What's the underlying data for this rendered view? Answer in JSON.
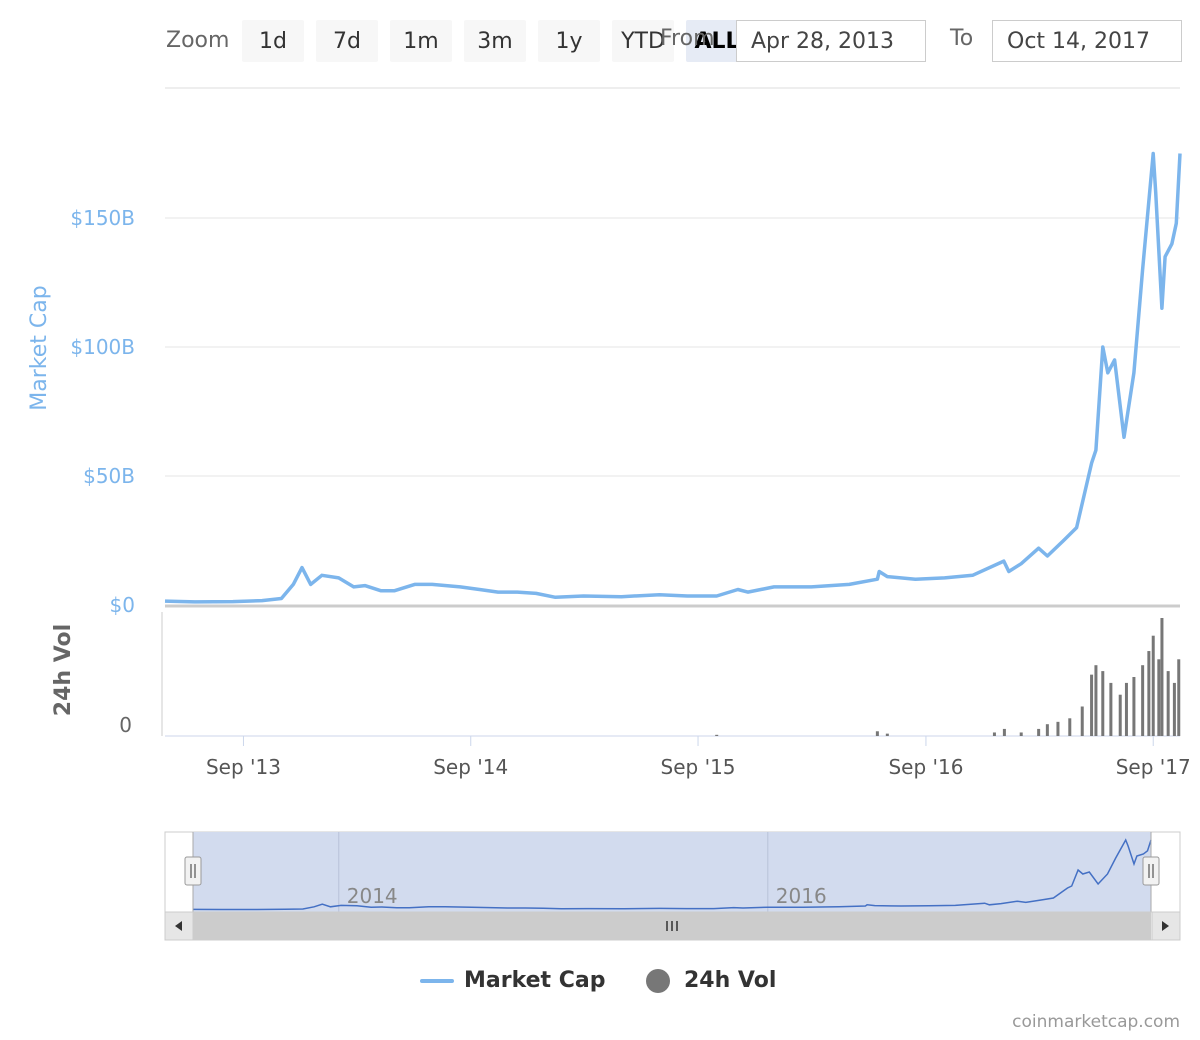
{
  "toolbar": {
    "zoom_label": "Zoom",
    "buttons": [
      "1d",
      "7d",
      "1m",
      "3m",
      "1y",
      "YTD",
      "ALL"
    ],
    "active": "ALL",
    "from_label": "From",
    "from_value": "Apr 28, 2013",
    "to_label": "To",
    "to_value": "Oct 14, 2017"
  },
  "colors": {
    "market_cap": "#7cb5ec",
    "volume": "#777777",
    "navigator_line": "#4470c4",
    "navigator_mask": "#d2dbee"
  },
  "credits": "coinmarketcap.com",
  "chart_data": {
    "type": "line",
    "title": "",
    "x_start": "2013-04-28",
    "x_end": "2017-10-14",
    "x_tick_labels": [
      "Sep '13",
      "Sep '14",
      "Sep '15",
      "Sep '16",
      "Sep '17"
    ],
    "x_ticks": [
      "2013-09-01",
      "2014-09-01",
      "2015-09-01",
      "2016-09-01",
      "2017-09-01"
    ],
    "navigator_labels": [
      "2014",
      "2016"
    ],
    "navigator_ticks": [
      "2014-01-01",
      "2016-01-01"
    ],
    "legend": [
      "Market Cap",
      "24h Vol"
    ],
    "market_cap_axis": {
      "label": "Market Cap",
      "ylim": [
        0,
        150
      ],
      "ticks": [
        0,
        50,
        100,
        150
      ],
      "tick_labels": [
        "$0",
        "$50B",
        "$100B",
        "$150B"
      ]
    },
    "volume_axis": {
      "label": "24h Vol",
      "ticks": [
        0
      ],
      "tick_labels": [
        "0"
      ]
    },
    "series": [
      {
        "name": "Market Cap",
        "unit": "billion USD",
        "points": [
          [
            "2013-04-28",
            1.5
          ],
          [
            "2013-06-15",
            1.2
          ],
          [
            "2013-08-15",
            1.3
          ],
          [
            "2013-10-01",
            1.7
          ],
          [
            "2013-11-01",
            2.5
          ],
          [
            "2013-11-20",
            8
          ],
          [
            "2013-12-04",
            14.5
          ],
          [
            "2013-12-18",
            8
          ],
          [
            "2014-01-05",
            11.5
          ],
          [
            "2014-02-01",
            10.5
          ],
          [
            "2014-02-25",
            7
          ],
          [
            "2014-03-15",
            7.5
          ],
          [
            "2014-04-10",
            5.5
          ],
          [
            "2014-05-01",
            5.5
          ],
          [
            "2014-06-03",
            8
          ],
          [
            "2014-07-01",
            8
          ],
          [
            "2014-08-15",
            7
          ],
          [
            "2014-09-15",
            6
          ],
          [
            "2014-10-15",
            5
          ],
          [
            "2014-11-15",
            5
          ],
          [
            "2014-12-15",
            4.5
          ],
          [
            "2015-01-15",
            3
          ],
          [
            "2015-03-01",
            3.5
          ],
          [
            "2015-05-01",
            3.2
          ],
          [
            "2015-07-01",
            4
          ],
          [
            "2015-08-15",
            3.5
          ],
          [
            "2015-10-01",
            3.5
          ],
          [
            "2015-11-04",
            6
          ],
          [
            "2015-11-20",
            5
          ],
          [
            "2016-01-01",
            7
          ],
          [
            "2016-03-01",
            7
          ],
          [
            "2016-05-01",
            8
          ],
          [
            "2016-06-15",
            10
          ],
          [
            "2016-06-18",
            13
          ],
          [
            "2016-07-01",
            11
          ],
          [
            "2016-08-15",
            10
          ],
          [
            "2016-10-01",
            10.5
          ],
          [
            "2016-11-15",
            11.5
          ],
          [
            "2017-01-04",
            17
          ],
          [
            "2017-01-12",
            13
          ],
          [
            "2017-02-01",
            16
          ],
          [
            "2017-03-01",
            22
          ],
          [
            "2017-03-15",
            19
          ],
          [
            "2017-04-10",
            25
          ],
          [
            "2017-05-01",
            30
          ],
          [
            "2017-05-25",
            55
          ],
          [
            "2017-06-01",
            60
          ],
          [
            "2017-06-12",
            100
          ],
          [
            "2017-06-20",
            90
          ],
          [
            "2017-07-01",
            95
          ],
          [
            "2017-07-16",
            65
          ],
          [
            "2017-08-01",
            90
          ],
          [
            "2017-08-15",
            130
          ],
          [
            "2017-09-01",
            175
          ],
          [
            "2017-09-05",
            160
          ],
          [
            "2017-09-15",
            115
          ],
          [
            "2017-09-20",
            135
          ],
          [
            "2017-10-01",
            140
          ],
          [
            "2017-10-08",
            148
          ],
          [
            "2017-10-14",
            175
          ]
        ]
      },
      {
        "name": "24h Vol",
        "unit": "relative",
        "points": [
          [
            "2015-10-01",
            0.01
          ],
          [
            "2016-06-15",
            0.04
          ],
          [
            "2016-07-01",
            0.02
          ],
          [
            "2016-12-20",
            0.03
          ],
          [
            "2017-01-05",
            0.06
          ],
          [
            "2017-02-01",
            0.03
          ],
          [
            "2017-03-01",
            0.06
          ],
          [
            "2017-03-15",
            0.1
          ],
          [
            "2017-04-01",
            0.12
          ],
          [
            "2017-04-20",
            0.15
          ],
          [
            "2017-05-10",
            0.25
          ],
          [
            "2017-05-25",
            0.52
          ],
          [
            "2017-06-01",
            0.6
          ],
          [
            "2017-06-12",
            0.55
          ],
          [
            "2017-06-25",
            0.45
          ],
          [
            "2017-07-10",
            0.35
          ],
          [
            "2017-07-20",
            0.45
          ],
          [
            "2017-08-01",
            0.5
          ],
          [
            "2017-08-15",
            0.6
          ],
          [
            "2017-08-25",
            0.72
          ],
          [
            "2017-09-01",
            0.85
          ],
          [
            "2017-09-10",
            0.65
          ],
          [
            "2017-09-15",
            1.0
          ],
          [
            "2017-09-25",
            0.55
          ],
          [
            "2017-10-05",
            0.45
          ],
          [
            "2017-10-12",
            0.65
          ]
        ]
      }
    ]
  }
}
